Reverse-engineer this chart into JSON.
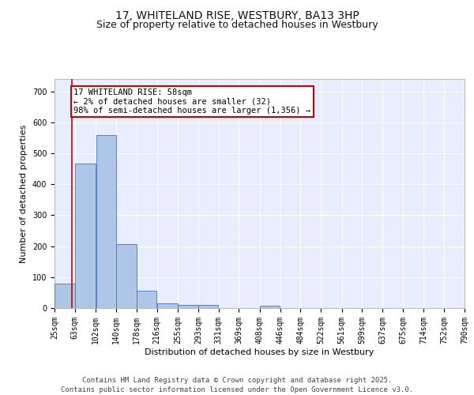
{
  "title_line1": "17, WHITELAND RISE, WESTBURY, BA13 3HP",
  "title_line2": "Size of property relative to detached houses in Westbury",
  "xlabel": "Distribution of detached houses by size in Westbury",
  "ylabel": "Number of detached properties",
  "bar_color": "#aec6e8",
  "bar_edge_color": "#4472c4",
  "background_color": "#e8eeff",
  "grid_color": "#ffffff",
  "vline_color": "#cc0000",
  "annotation_box_color": "#cc0000",
  "annotation_text": "17 WHITELAND RISE: 58sqm\n← 2% of detached houses are smaller (32)\n98% of semi-detached houses are larger (1,356) →",
  "vline_x": 58,
  "bin_edges": [
    25,
    63,
    102,
    140,
    178,
    216,
    255,
    293,
    331,
    369,
    408,
    446,
    484,
    522,
    561,
    599,
    637,
    675,
    714,
    752,
    790
  ],
  "bar_heights": [
    78,
    467,
    560,
    207,
    57,
    15,
    10,
    9,
    0,
    0,
    7,
    0,
    0,
    0,
    0,
    0,
    0,
    0,
    0,
    0
  ],
  "ylim": [
    0,
    740
  ],
  "yticks": [
    0,
    100,
    200,
    300,
    400,
    500,
    600,
    700
  ],
  "footer_text": "Contains HM Land Registry data © Crown copyright and database right 2025.\nContains public sector information licensed under the Open Government Licence v3.0.",
  "title_fontsize": 10,
  "subtitle_fontsize": 9,
  "axis_label_fontsize": 8,
  "tick_fontsize": 7,
  "annotation_fontsize": 7.5,
  "footer_fontsize": 6.5
}
